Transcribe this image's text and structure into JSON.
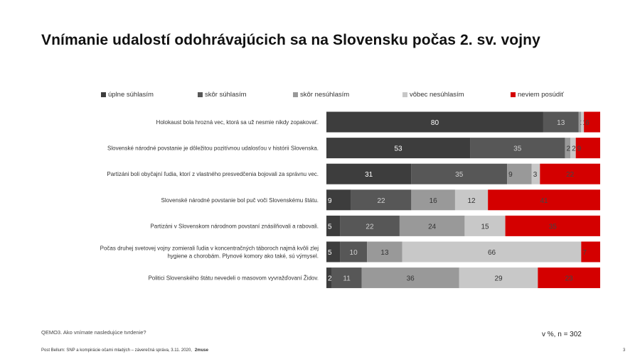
{
  "title": "Vnímanie udalostí odohrávajúcich sa na Slovensku počas 2. sv. vojny",
  "footnote": "QEMO3. Ako vnímate nasledujúce tvrdenie?",
  "sample_note": "v %, n = 302",
  "footer_text": "Post Bellum: SNP a kompirácie očami mladých – záverečná správa, 3.11. 2020,",
  "footer_brand": "2muse",
  "page_number": "3",
  "chart_data": {
    "type": "bar",
    "orientation": "horizontal",
    "stacked": true,
    "xlim": [
      0,
      100
    ],
    "unit": "%",
    "legend_position": "top",
    "categories": [
      "Holokaust bola hrozná vec, ktorá sa už nesmie nikdy zopakovať.",
      "Slovenské národné povstanie je dôležitou pozitívnou udalosťou v histórii Slovenska.",
      "Partizáni boli obyčajní ľudia, ktorí z vlastného presvedčenia bojovali za správnu vec.",
      "Slovenské národné povstanie bol puč voči Slovenskému štátu.",
      "Partizáni v Slovenskom národnom povstaní znásilňovali a rabovali.",
      "Počas druhej svetovej vojny zomierali ľudia v koncentračných táboroch najmä kvôli zlej hygiene a chorobám. Plynové komory ako také, sú výmysel.",
      "Politici Slovenského štátu nevedeli o masovom vyvražďovaní Židov."
    ],
    "series": [
      {
        "name": "úplne súhlasím",
        "color": "#3d3d3d",
        "values": [
          80,
          53,
          31,
          9,
          5,
          5,
          2
        ]
      },
      {
        "name": "skôr súhlasím",
        "color": "#575757",
        "values": [
          13,
          35,
          35,
          22,
          22,
          10,
          11
        ]
      },
      {
        "name": "skôr nesúhlasím",
        "color": "#999999",
        "values": [
          1,
          2,
          9,
          16,
          24,
          13,
          36
        ]
      },
      {
        "name": "vôbec nesúhlasím",
        "color": "#c8c8c8",
        "values": [
          1,
          2,
          3,
          12,
          15,
          66,
          29
        ]
      },
      {
        "name": "neviem posúdiť",
        "color": "#d40000",
        "values": [
          6,
          9,
          22,
          41,
          35,
          7,
          23
        ]
      }
    ]
  }
}
